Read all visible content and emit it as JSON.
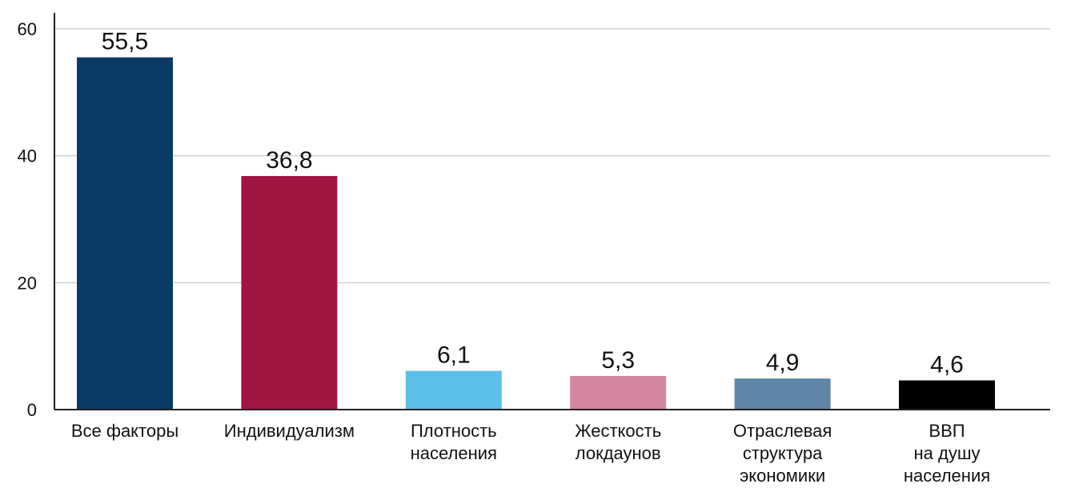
{
  "chart_data": {
    "type": "bar",
    "categories": [
      [
        "Все факторы"
      ],
      [
        "Индивидуализм"
      ],
      [
        "Плотность",
        "населения"
      ],
      [
        "Жесткость",
        "локдаунов"
      ],
      [
        "Отраслевая",
        "структура",
        "экономики"
      ],
      [
        "ВВП",
        "на душу",
        "населения"
      ]
    ],
    "values": [
      55.5,
      36.8,
      6.1,
      5.3,
      4.9,
      4.6
    ],
    "value_labels": [
      "55,5",
      "36,8",
      "6,1",
      "5,3",
      "4,9",
      "4,6"
    ],
    "colors": [
      "#0b3a66",
      "#a01442",
      "#5bbfea",
      "#d486a0",
      "#5f86a6",
      "#000000"
    ],
    "yticks": [
      0,
      20,
      40,
      60
    ],
    "ylim": [
      0,
      60
    ],
    "grid": true,
    "title": "",
    "xlabel": "",
    "ylabel": ""
  }
}
